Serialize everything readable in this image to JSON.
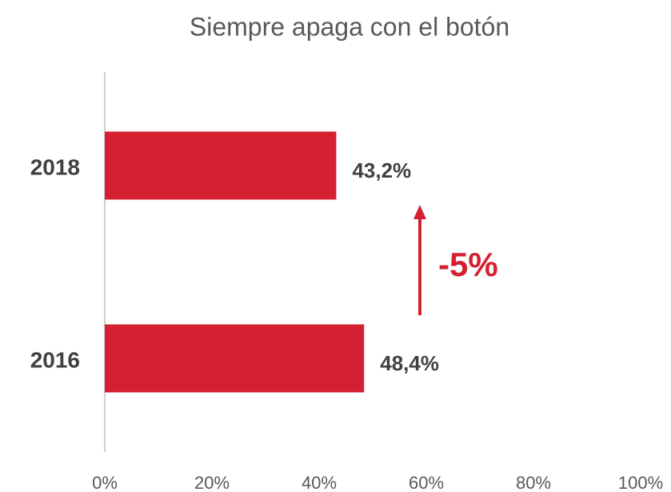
{
  "chart_data": {
    "type": "bar",
    "orientation": "horizontal",
    "title": "Siempre apaga con el botón",
    "categories": [
      "2018",
      "2016"
    ],
    "values": [
      43.2,
      48.4
    ],
    "value_labels": [
      "43,2%",
      "48,4%"
    ],
    "color": "#d42030",
    "xlim": [
      0,
      100
    ],
    "xticks": [
      {
        "value": 0,
        "label": "0%"
      },
      {
        "value": 20,
        "label": "20%"
      },
      {
        "value": 40,
        "label": "40%"
      },
      {
        "value": 60,
        "label": "60%"
      },
      {
        "value": 80,
        "label": "80%"
      },
      {
        "value": 100,
        "label": "100%"
      }
    ],
    "grid": false,
    "annotation": {
      "text": "-5%"
    }
  }
}
